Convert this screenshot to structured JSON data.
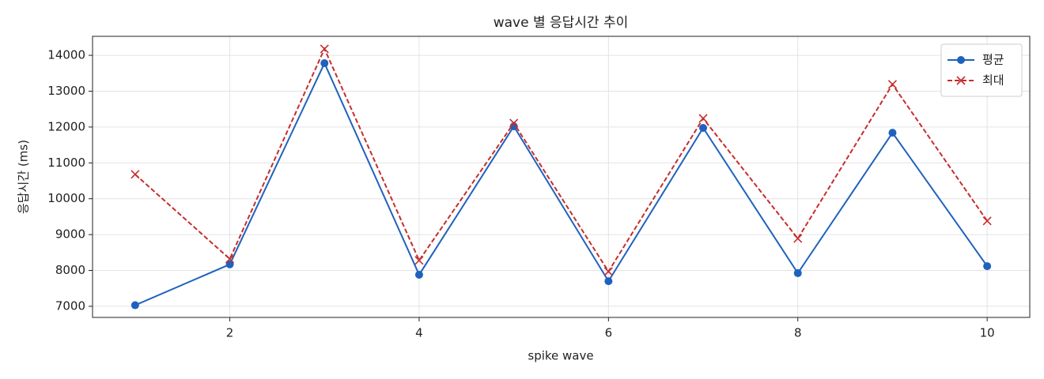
{
  "chart_data": {
    "type": "line",
    "title": "wave 별 응답시간 추이",
    "x_label": "spike wave",
    "y_label": "응답시간 (ms)",
    "x": [
      1,
      2,
      3,
      4,
      5,
      6,
      7,
      8,
      9,
      10
    ],
    "series": [
      {
        "name": "평균",
        "color": "#1f62bd",
        "marker": "o",
        "linestyle": "solid",
        "values": [
          7030,
          8170,
          13780,
          7880,
          12020,
          7700,
          11975,
          7925,
          11840,
          8120
        ]
      },
      {
        "name": "최대",
        "color": "#c62d2d",
        "marker": "x",
        "linestyle": "dashed",
        "values": [
          10680,
          8320,
          14180,
          8280,
          12110,
          7970,
          12240,
          8890,
          13190,
          9380
        ]
      }
    ],
    "xlim": [
      0.55,
      10.45
    ],
    "ylim": [
      6690,
      14530
    ],
    "xticks": [
      2,
      4,
      6,
      8,
      10
    ],
    "yticks": [
      7000,
      8000,
      9000,
      10000,
      11000,
      12000,
      13000,
      14000
    ],
    "grid": true,
    "legend": "upper right"
  }
}
